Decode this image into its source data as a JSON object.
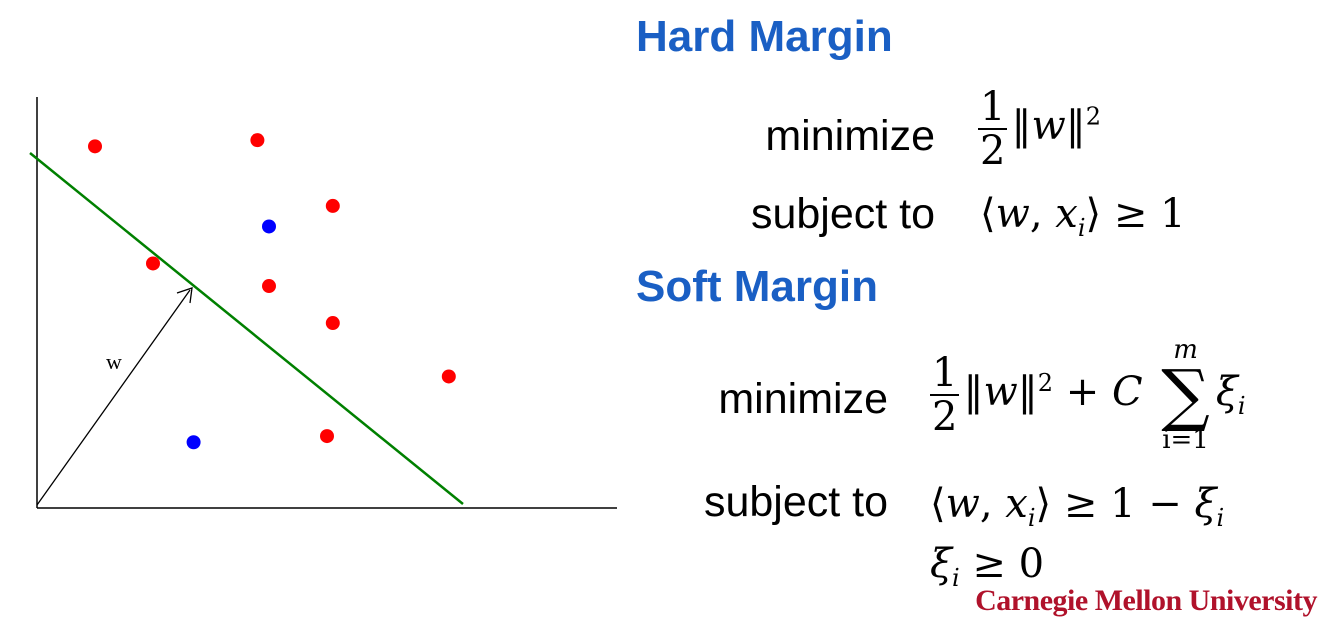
{
  "diagram": {
    "vector_label": "w",
    "points": [
      {
        "color": "#ff0000",
        "x": 1.0,
        "y": 8.8
      },
      {
        "color": "#ff0000",
        "x": 3.8,
        "y": 8.95
      },
      {
        "color": "#ff0000",
        "x": 5.1,
        "y": 7.35
      },
      {
        "color": "#0000ff",
        "x": 4.0,
        "y": 6.85
      },
      {
        "color": "#ff0000",
        "x": 2.0,
        "y": 5.95
      },
      {
        "color": "#ff0000",
        "x": 4.0,
        "y": 5.4
      },
      {
        "color": "#ff0000",
        "x": 5.1,
        "y": 4.5
      },
      {
        "color": "#ff0000",
        "x": 7.1,
        "y": 3.2
      },
      {
        "color": "#0000ff",
        "x": 2.7,
        "y": 1.6
      },
      {
        "color": "#ff0000",
        "x": 5.0,
        "y": 1.75
      }
    ],
    "line_color": "#008000",
    "point_color_primary": "#ff0000",
    "point_color_secondary": "#0000ff"
  },
  "hard_margin": {
    "title": "Hard Margin",
    "minimize_label": "minimize",
    "subject_label": "subject to"
  },
  "soft_margin": {
    "title": "Soft Margin",
    "minimize_label": "minimize",
    "subject_label": "subject to",
    "sum_upper": "m",
    "sum_lower": "i=1"
  },
  "logo": "Carnegie Mellon University",
  "colors": {
    "heading": "#1a5fc4",
    "logo": "#b0122b"
  }
}
